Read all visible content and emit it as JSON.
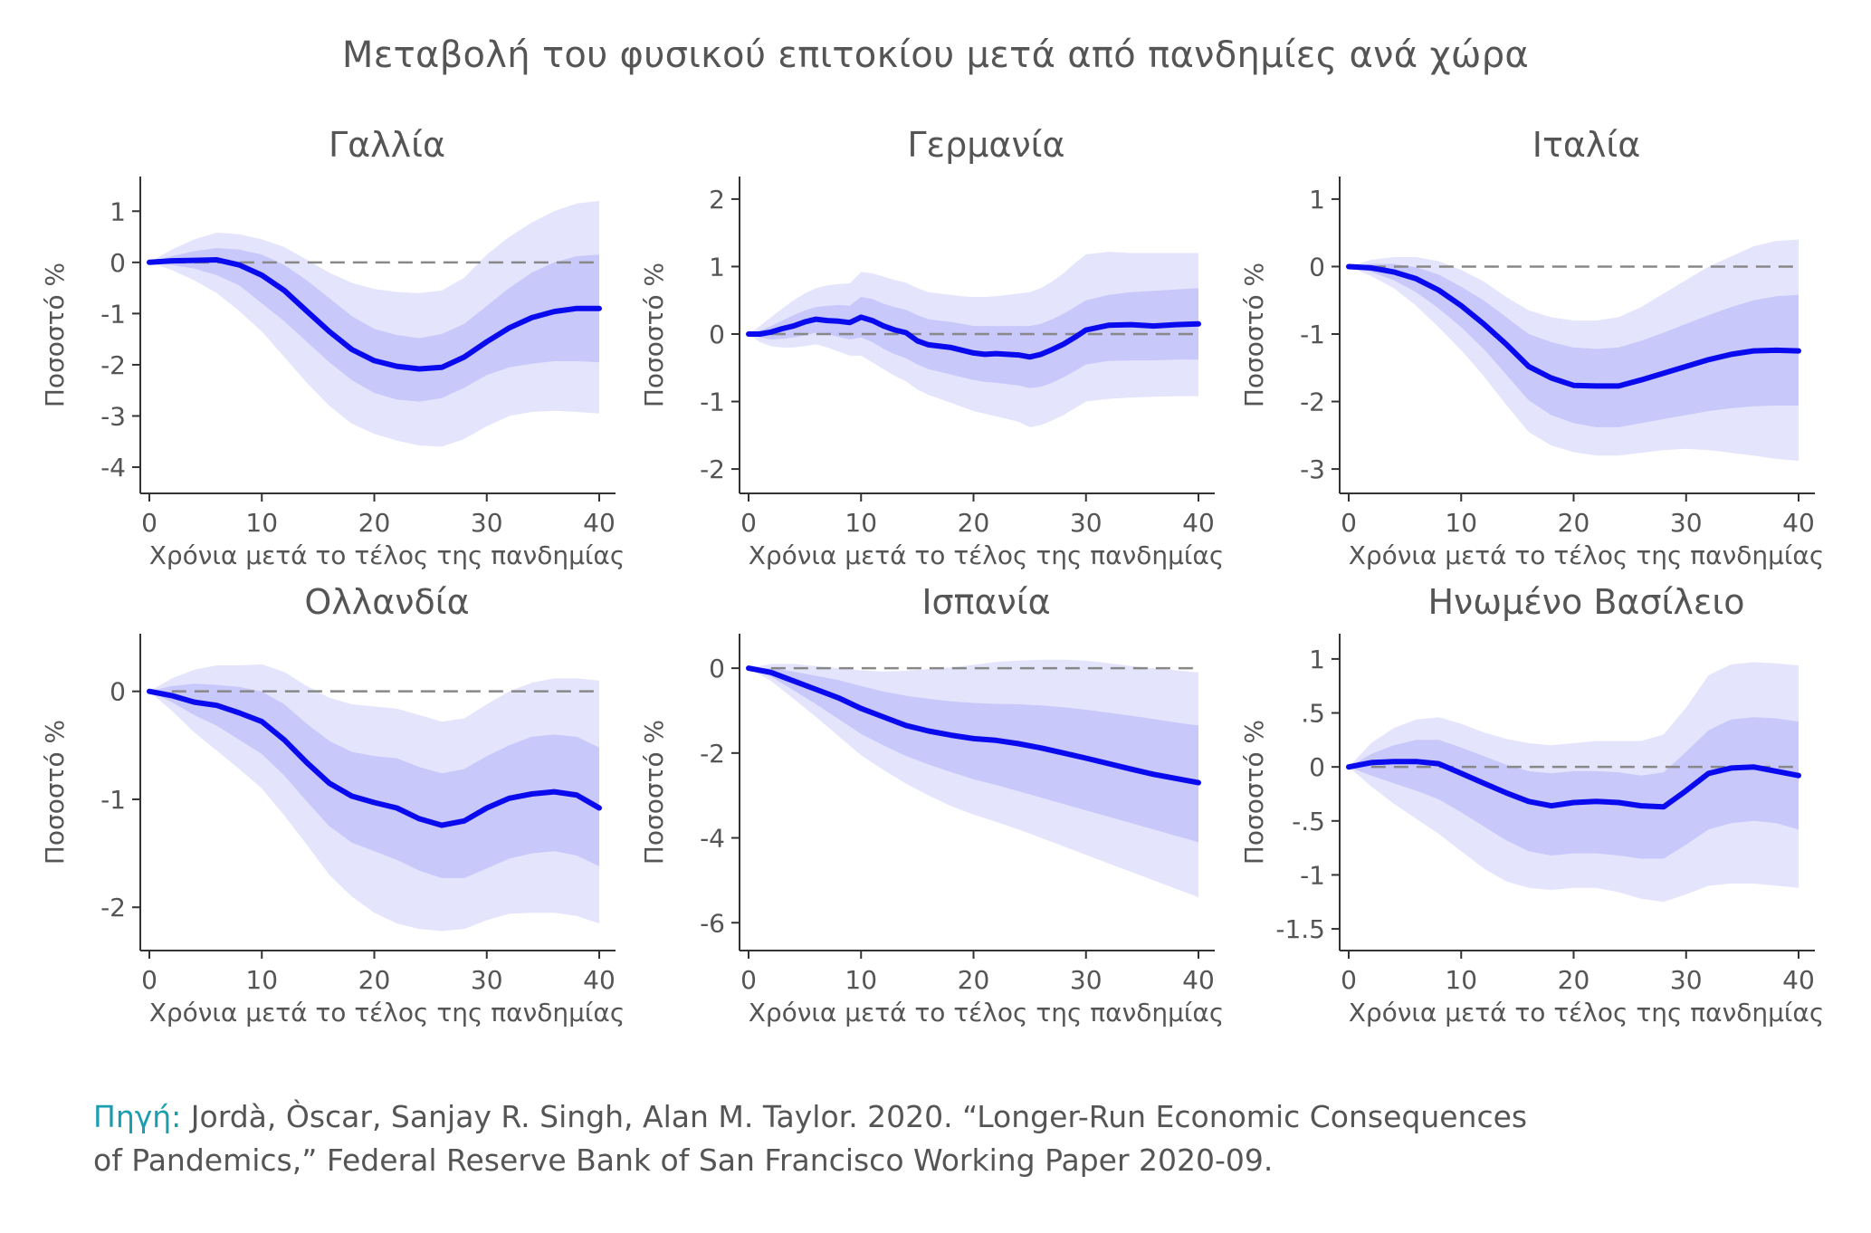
{
  "title": "Μεταβολή του φυσικού επιτοκίου μετά από πανδημίες ανά χώρα",
  "source_label": "Πηγή:",
  "source_line1": "Jordà, Òscar, Sanjay R. Singh, Alan M. Taylor. 2020. “Longer-Run Economic Consequences",
  "source_line2": "of Pandemics,” Federal Reserve Bank of San Francisco Working Paper 2020-09.",
  "colors": {
    "line": "#0a0aee",
    "band_outer": "#e4e4fc",
    "band_inner": "#c8c8fa",
    "zero": "#888888",
    "axis": "#333333",
    "text": "#555555"
  },
  "chart_data": [
    {
      "type": "line",
      "title": "Γαλλία",
      "xlabel": "Χρόνια μετά το τέλος της πανδημίας",
      "ylabel": "Ποσοστό %",
      "xlim": [
        0,
        40
      ],
      "ylim": [
        -4.3,
        1.5
      ],
      "xticks": [
        0,
        10,
        20,
        30,
        40
      ],
      "xtick_labels": [
        "0",
        "10",
        "20",
        "30",
        "40"
      ],
      "yticks": [
        1,
        0,
        -1,
        -2,
        -3,
        -4
      ],
      "ytick_labels": [
        "1",
        "0",
        "-1",
        "-2",
        "-3",
        "-4"
      ],
      "x": [
        0,
        2,
        4,
        6,
        8,
        10,
        12,
        14,
        16,
        18,
        20,
        22,
        24,
        26,
        28,
        30,
        32,
        34,
        36,
        38,
        40
      ],
      "y": [
        0,
        0.03,
        0.04,
        0.05,
        -0.05,
        -0.25,
        -0.55,
        -0.95,
        -1.35,
        -1.7,
        -1.92,
        -2.03,
        -2.08,
        -2.05,
        -1.85,
        -1.55,
        -1.28,
        -1.08,
        -0.96,
        -0.9,
        -0.9
      ],
      "band_inner_low": [
        0,
        -0.05,
        -0.12,
        -0.25,
        -0.45,
        -0.8,
        -1.15,
        -1.55,
        -1.95,
        -2.3,
        -2.55,
        -2.68,
        -2.72,
        -2.65,
        -2.45,
        -2.2,
        -2.05,
        -1.98,
        -1.93,
        -1.93,
        -1.95
      ],
      "band_inner_high": [
        0,
        0.12,
        0.22,
        0.28,
        0.25,
        0.15,
        -0.05,
        -0.35,
        -0.7,
        -1.05,
        -1.3,
        -1.42,
        -1.48,
        -1.4,
        -1.2,
        -0.85,
        -0.5,
        -0.2,
        0.0,
        0.12,
        0.15
      ],
      "band_outer_low": [
        0,
        -0.15,
        -0.35,
        -0.6,
        -0.95,
        -1.35,
        -1.85,
        -2.35,
        -2.8,
        -3.15,
        -3.35,
        -3.48,
        -3.58,
        -3.6,
        -3.45,
        -3.2,
        -3.0,
        -2.92,
        -2.9,
        -2.92,
        -2.95
      ],
      "band_outer_high": [
        0,
        0.25,
        0.45,
        0.58,
        0.55,
        0.45,
        0.3,
        0.05,
        -0.2,
        -0.4,
        -0.52,
        -0.58,
        -0.6,
        -0.55,
        -0.3,
        0.15,
        0.5,
        0.78,
        1.0,
        1.15,
        1.2
      ]
    },
    {
      "type": "line",
      "title": "Γερμανία",
      "xlabel": "Χρόνια μετά το τέλος της πανδημίας",
      "ylabel": "Ποσοστό %",
      "xlim": [
        0,
        40
      ],
      "ylim": [
        -2.2,
        2.2
      ],
      "xticks": [
        0,
        10,
        20,
        30,
        40
      ],
      "xtick_labels": [
        "0",
        "10",
        "20",
        "30",
        "40"
      ],
      "yticks": [
        2,
        1,
        0,
        -1,
        -2
      ],
      "ytick_labels": [
        "2",
        "1",
        "0",
        "-1",
        "-2"
      ],
      "x": [
        0,
        1,
        2,
        3,
        4,
        5,
        6,
        7,
        8,
        9,
        10,
        11,
        12,
        13,
        14,
        15,
        16,
        17,
        18,
        19,
        20,
        21,
        22,
        23,
        24,
        25,
        26,
        27,
        28,
        29,
        30,
        32,
        34,
        36,
        38,
        40
      ],
      "y": [
        0,
        0,
        0.03,
        0.08,
        0.12,
        0.18,
        0.22,
        0.2,
        0.19,
        0.17,
        0.25,
        0.2,
        0.12,
        0.06,
        0.02,
        -0.1,
        -0.16,
        -0.18,
        -0.2,
        -0.24,
        -0.28,
        -0.3,
        -0.29,
        -0.3,
        -0.31,
        -0.34,
        -0.3,
        -0.23,
        -0.15,
        -0.05,
        0.06,
        0.13,
        0.14,
        0.12,
        0.14,
        0.15
      ],
      "band_inner_low": [
        0,
        -0.05,
        -0.08,
        -0.07,
        -0.05,
        -0.02,
        0.02,
        0.0,
        -0.04,
        -0.08,
        -0.05,
        -0.12,
        -0.22,
        -0.3,
        -0.36,
        -0.45,
        -0.52,
        -0.56,
        -0.6,
        -0.64,
        -0.68,
        -0.71,
        -0.72,
        -0.74,
        -0.76,
        -0.8,
        -0.78,
        -0.72,
        -0.64,
        -0.55,
        -0.45,
        -0.4,
        -0.39,
        -0.39,
        -0.38,
        -0.38
      ],
      "band_inner_high": [
        0,
        0.05,
        0.12,
        0.2,
        0.28,
        0.35,
        0.4,
        0.42,
        0.43,
        0.42,
        0.55,
        0.52,
        0.45,
        0.4,
        0.36,
        0.28,
        0.22,
        0.2,
        0.18,
        0.15,
        0.12,
        0.12,
        0.12,
        0.12,
        0.12,
        0.12,
        0.15,
        0.22,
        0.3,
        0.4,
        0.5,
        0.58,
        0.62,
        0.64,
        0.66,
        0.68
      ],
      "band_outer_low": [
        0,
        -0.12,
        -0.18,
        -0.2,
        -0.2,
        -0.18,
        -0.15,
        -0.2,
        -0.26,
        -0.32,
        -0.32,
        -0.42,
        -0.52,
        -0.62,
        -0.7,
        -0.82,
        -0.9,
        -0.96,
        -1.02,
        -1.08,
        -1.14,
        -1.18,
        -1.22,
        -1.26,
        -1.3,
        -1.38,
        -1.35,
        -1.28,
        -1.2,
        -1.1,
        -1.0,
        -0.96,
        -0.94,
        -0.93,
        -0.92,
        -0.92
      ],
      "band_outer_high": [
        0,
        0.12,
        0.25,
        0.38,
        0.5,
        0.6,
        0.68,
        0.72,
        0.74,
        0.75,
        0.92,
        0.9,
        0.85,
        0.8,
        0.76,
        0.68,
        0.62,
        0.6,
        0.58,
        0.56,
        0.55,
        0.55,
        0.56,
        0.58,
        0.6,
        0.62,
        0.68,
        0.78,
        0.9,
        1.05,
        1.18,
        1.22,
        1.2,
        1.2,
        1.2,
        1.2
      ]
    },
    {
      "type": "line",
      "title": "Ιταλία",
      "xlabel": "Χρόνια μετά το τέλος της πανδημίας",
      "ylabel": "Ποσοστό %",
      "xlim": [
        0,
        40
      ],
      "ylim": [
        -3.2,
        1.2
      ],
      "xticks": [
        0,
        10,
        20,
        30,
        40
      ],
      "xtick_labels": [
        "0",
        "10",
        "20",
        "30",
        "40"
      ],
      "yticks": [
        1,
        0,
        -1,
        -2,
        -3
      ],
      "ytick_labels": [
        "1",
        "0",
        "-1",
        "-2",
        "-3"
      ],
      "x": [
        0,
        2,
        4,
        6,
        8,
        10,
        12,
        14,
        16,
        18,
        20,
        22,
        24,
        26,
        28,
        30,
        32,
        34,
        36,
        38,
        40
      ],
      "y": [
        0,
        -0.02,
        -0.08,
        -0.18,
        -0.35,
        -0.58,
        -0.85,
        -1.15,
        -1.48,
        -1.65,
        -1.76,
        -1.77,
        -1.77,
        -1.68,
        -1.58,
        -1.48,
        -1.38,
        -1.3,
        -1.25,
        -1.24,
        -1.25
      ],
      "band_inner_low": [
        0,
        -0.08,
        -0.2,
        -0.38,
        -0.62,
        -0.9,
        -1.22,
        -1.6,
        -1.98,
        -2.2,
        -2.32,
        -2.38,
        -2.38,
        -2.32,
        -2.26,
        -2.2,
        -2.14,
        -2.1,
        -2.07,
        -2.06,
        -2.06
      ],
      "band_inner_high": [
        0,
        0.04,
        0.04,
        -0.01,
        -0.12,
        -0.3,
        -0.5,
        -0.75,
        -1.0,
        -1.12,
        -1.2,
        -1.22,
        -1.2,
        -1.1,
        -0.98,
        -0.85,
        -0.72,
        -0.6,
        -0.5,
        -0.44,
        -0.42
      ],
      "band_outer_low": [
        0,
        -0.14,
        -0.32,
        -0.58,
        -0.9,
        -1.24,
        -1.62,
        -2.05,
        -2.45,
        -2.65,
        -2.75,
        -2.8,
        -2.8,
        -2.76,
        -2.72,
        -2.7,
        -2.72,
        -2.76,
        -2.8,
        -2.85,
        -2.88
      ],
      "band_outer_high": [
        0,
        0.1,
        0.14,
        0.14,
        0.08,
        -0.05,
        -0.22,
        -0.45,
        -0.65,
        -0.75,
        -0.8,
        -0.8,
        -0.75,
        -0.6,
        -0.4,
        -0.2,
        0.0,
        0.15,
        0.3,
        0.38,
        0.4
      ]
    },
    {
      "type": "line",
      "title": "Ολλανδία",
      "xlabel": "Χρόνια μετά το τέλος της πανδημίας",
      "ylabel": "Ποσοστό %",
      "xlim": [
        0,
        40
      ],
      "ylim": [
        -2.3,
        0.45
      ],
      "xticks": [
        0,
        10,
        20,
        30,
        40
      ],
      "xtick_labels": [
        "0",
        "10",
        "20",
        "30",
        "40"
      ],
      "yticks": [
        0,
        -1,
        -2
      ],
      "ytick_labels": [
        "0",
        "-1",
        "-2"
      ],
      "x": [
        0,
        2,
        4,
        6,
        8,
        10,
        12,
        14,
        16,
        18,
        20,
        22,
        24,
        26,
        28,
        30,
        32,
        34,
        36,
        38,
        40
      ],
      "y": [
        0,
        -0.04,
        -0.1,
        -0.13,
        -0.2,
        -0.28,
        -0.45,
        -0.66,
        -0.85,
        -0.97,
        -1.03,
        -1.08,
        -1.18,
        -1.24,
        -1.2,
        -1.08,
        -0.99,
        -0.95,
        -0.93,
        -0.96,
        -1.08
      ],
      "band_inner_low": [
        0,
        -0.1,
        -0.22,
        -0.32,
        -0.45,
        -0.58,
        -0.78,
        -1.02,
        -1.25,
        -1.4,
        -1.48,
        -1.56,
        -1.66,
        -1.73,
        -1.73,
        -1.64,
        -1.55,
        -1.5,
        -1.48,
        -1.52,
        -1.62
      ],
      "band_inner_high": [
        0,
        0.05,
        0.07,
        0.06,
        0.04,
        0.0,
        -0.12,
        -0.3,
        -0.46,
        -0.56,
        -0.6,
        -0.62,
        -0.7,
        -0.76,
        -0.72,
        -0.6,
        -0.5,
        -0.42,
        -0.4,
        -0.42,
        -0.52
      ],
      "band_outer_low": [
        0,
        -0.18,
        -0.38,
        -0.55,
        -0.72,
        -0.9,
        -1.15,
        -1.42,
        -1.7,
        -1.9,
        -2.05,
        -2.15,
        -2.2,
        -2.22,
        -2.2,
        -2.12,
        -2.06,
        -2.05,
        -2.05,
        -2.08,
        -2.15
      ],
      "band_outer_high": [
        0,
        0.12,
        0.2,
        0.24,
        0.24,
        0.25,
        0.18,
        0.05,
        -0.06,
        -0.12,
        -0.14,
        -0.16,
        -0.22,
        -0.28,
        -0.25,
        -0.12,
        0.0,
        0.08,
        0.12,
        0.12,
        0.1
      ]
    },
    {
      "type": "line",
      "title": "Ισπανία",
      "xlabel": "Χρόνια μετά το τέλος της πανδημίας",
      "ylabel": "Ποσοστό %",
      "xlim": [
        0,
        40
      ],
      "ylim": [
        -6.4,
        0.6
      ],
      "xticks": [
        0,
        10,
        20,
        30,
        40
      ],
      "xtick_labels": [
        "0",
        "10",
        "20",
        "30",
        "40"
      ],
      "yticks": [
        0,
        -2,
        -4,
        -6
      ],
      "ytick_labels": [
        "0",
        "-2",
        "-4",
        "-6"
      ],
      "x": [
        0,
        2,
        4,
        6,
        8,
        10,
        12,
        14,
        16,
        18,
        20,
        22,
        24,
        26,
        28,
        30,
        32,
        34,
        36,
        38,
        40
      ],
      "y": [
        0,
        -0.1,
        -0.3,
        -0.5,
        -0.7,
        -0.95,
        -1.15,
        -1.35,
        -1.48,
        -1.58,
        -1.66,
        -1.7,
        -1.78,
        -1.88,
        -2.0,
        -2.12,
        -2.25,
        -2.38,
        -2.5,
        -2.6,
        -2.7
      ],
      "band_inner_low": [
        0,
        -0.2,
        -0.52,
        -0.85,
        -1.2,
        -1.55,
        -1.82,
        -2.07,
        -2.27,
        -2.45,
        -2.62,
        -2.75,
        -2.9,
        -3.05,
        -3.2,
        -3.35,
        -3.5,
        -3.65,
        -3.8,
        -3.95,
        -4.1
      ],
      "band_inner_high": [
        0,
        0.0,
        -0.08,
        -0.18,
        -0.28,
        -0.42,
        -0.55,
        -0.65,
        -0.72,
        -0.78,
        -0.82,
        -0.84,
        -0.85,
        -0.88,
        -0.92,
        -0.98,
        -1.05,
        -1.12,
        -1.2,
        -1.28,
        -1.35
      ],
      "band_outer_low": [
        0,
        -0.3,
        -0.72,
        -1.15,
        -1.6,
        -2.05,
        -2.4,
        -2.72,
        -3.0,
        -3.25,
        -3.45,
        -3.62,
        -3.8,
        -4.0,
        -4.2,
        -4.4,
        -4.6,
        -4.8,
        -5.0,
        -5.2,
        -5.4
      ],
      "band_outer_high": [
        0,
        0.1,
        0.1,
        0.05,
        0.0,
        -0.05,
        -0.08,
        -0.06,
        -0.02,
        0.02,
        0.08,
        0.15,
        0.18,
        0.2,
        0.2,
        0.18,
        0.12,
        0.05,
        0.0,
        -0.05,
        -0.1
      ]
    },
    {
      "type": "line",
      "title": "Ηνωμένο Βασίλειο",
      "xlabel": "Χρόνια μετά το τέλος της πανδημίας",
      "ylabel": "Ποσοστό %",
      "xlim": [
        0,
        40
      ],
      "ylim": [
        -1.6,
        1.15
      ],
      "xticks": [
        0,
        10,
        20,
        30,
        40
      ],
      "xtick_labels": [
        "0",
        "10",
        "20",
        "30",
        "40"
      ],
      "yticks": [
        1,
        0.5,
        0,
        -0.5,
        -1,
        -1.5
      ],
      "ytick_labels": [
        "1",
        ".5",
        "0",
        "-.5",
        "-1",
        "-1.5"
      ],
      "x": [
        0,
        2,
        4,
        6,
        8,
        10,
        12,
        14,
        16,
        18,
        20,
        22,
        24,
        26,
        28,
        30,
        32,
        34,
        36,
        38,
        40
      ],
      "y": [
        0,
        0.04,
        0.05,
        0.05,
        0.03,
        -0.06,
        -0.15,
        -0.24,
        -0.32,
        -0.36,
        -0.33,
        -0.32,
        -0.33,
        -0.36,
        -0.37,
        -0.22,
        -0.06,
        -0.01,
        0.0,
        -0.04,
        -0.08
      ],
      "band_inner_low": [
        0,
        -0.08,
        -0.15,
        -0.22,
        -0.3,
        -0.42,
        -0.55,
        -0.68,
        -0.78,
        -0.82,
        -0.8,
        -0.8,
        -0.82,
        -0.85,
        -0.85,
        -0.72,
        -0.58,
        -0.52,
        -0.5,
        -0.52,
        -0.58
      ],
      "band_inner_high": [
        0,
        0.12,
        0.2,
        0.25,
        0.25,
        0.18,
        0.1,
        0.02,
        -0.04,
        -0.06,
        -0.04,
        -0.04,
        -0.05,
        -0.08,
        -0.05,
        0.14,
        0.34,
        0.44,
        0.46,
        0.45,
        0.42
      ],
      "band_outer_low": [
        0,
        -0.18,
        -0.34,
        -0.48,
        -0.62,
        -0.78,
        -0.94,
        -1.06,
        -1.12,
        -1.14,
        -1.12,
        -1.12,
        -1.16,
        -1.22,
        -1.25,
        -1.18,
        -1.1,
        -1.08,
        -1.08,
        -1.1,
        -1.12
      ],
      "band_outer_high": [
        0,
        0.22,
        0.36,
        0.44,
        0.46,
        0.4,
        0.32,
        0.26,
        0.22,
        0.2,
        0.22,
        0.24,
        0.24,
        0.24,
        0.3,
        0.55,
        0.85,
        0.95,
        0.97,
        0.96,
        0.94
      ]
    }
  ]
}
